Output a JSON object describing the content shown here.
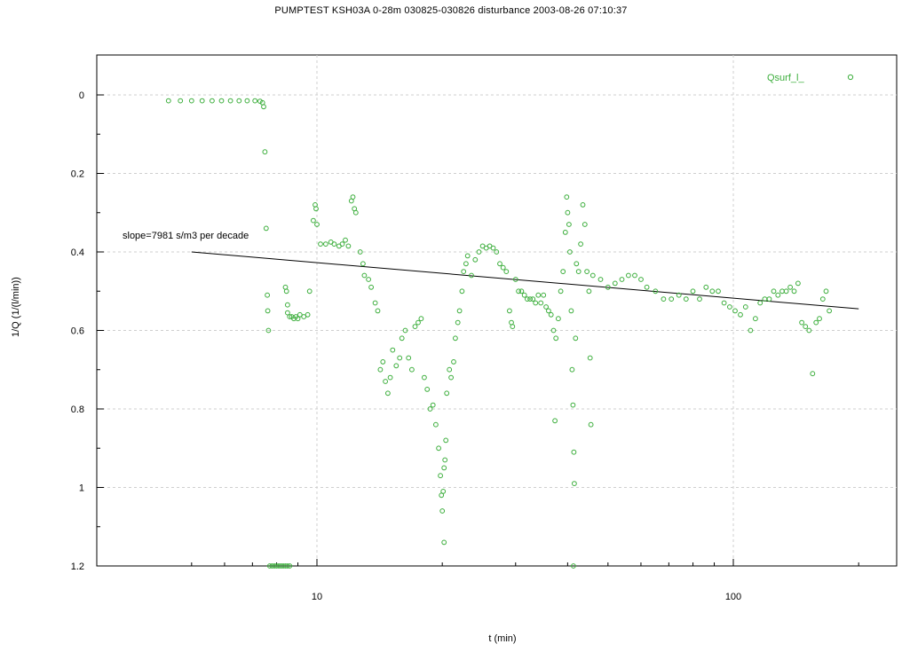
{
  "chart_data": {
    "type": "scatter",
    "title": "PUMPTEST KSH03A 0-28m 030825-030826  disturbance 2003-08-26 07:10:37",
    "xlabel": "t (min)",
    "ylabel": "1/Q (1/(l/min))",
    "x_scale": "log",
    "xlim": [
      4.4,
      240
    ],
    "ylim": [
      1.2,
      -0.1
    ],
    "y_inverted": true,
    "grid": true,
    "x_major_ticks": [
      {
        "value": 10,
        "label": "10"
      },
      {
        "value": 100,
        "label": "100"
      }
    ],
    "y_ticks": [
      {
        "value": 0,
        "label": "0"
      },
      {
        "value": 0.2,
        "label": "0.2"
      },
      {
        "value": 0.4,
        "label": "0.4"
      },
      {
        "value": 0.6,
        "label": "0.6"
      },
      {
        "value": 0.8,
        "label": "0.8"
      },
      {
        "value": 1,
        "label": "1"
      },
      {
        "value": 1.2,
        "label": "1.2"
      }
    ],
    "legend": {
      "position": "top-right",
      "label": "Qsurf_l_"
    },
    "series": [
      {
        "name": "Qsurf_l_",
        "color": "#3cae3c",
        "marker": "open-circle",
        "points": [
          [
            4.4,
            0.015
          ],
          [
            4.7,
            0.015
          ],
          [
            5,
            0.015
          ],
          [
            5.3,
            0.015
          ],
          [
            5.6,
            0.015
          ],
          [
            5.9,
            0.015
          ],
          [
            6.2,
            0.015
          ],
          [
            6.5,
            0.015
          ],
          [
            6.8,
            0.015
          ],
          [
            7.1,
            0.015
          ],
          [
            7.3,
            0.016
          ],
          [
            7.4,
            0.02
          ],
          [
            7.45,
            0.03
          ],
          [
            7.5,
            0.145
          ],
          [
            7.55,
            0.34
          ],
          [
            7.6,
            0.51
          ],
          [
            7.62,
            0.55
          ],
          [
            7.65,
            0.6
          ],
          [
            7.7,
            1.2
          ],
          [
            7.8,
            1.2
          ],
          [
            7.9,
            1.2
          ],
          [
            8.0,
            1.2
          ],
          [
            8.1,
            1.2
          ],
          [
            8.2,
            1.2
          ],
          [
            8.3,
            1.2
          ],
          [
            8.4,
            1.2
          ],
          [
            8.5,
            1.2
          ],
          [
            8.6,
            1.2
          ],
          [
            8.4,
            0.49
          ],
          [
            8.45,
            0.5
          ],
          [
            8.5,
            0.535
          ],
          [
            8.5,
            0.555
          ],
          [
            8.6,
            0.565
          ],
          [
            8.7,
            0.565
          ],
          [
            8.8,
            0.57
          ],
          [
            8.9,
            0.565
          ],
          [
            9.0,
            0.57
          ],
          [
            9.1,
            0.56
          ],
          [
            9.3,
            0.565
          ],
          [
            9.5,
            0.56
          ],
          [
            9.6,
            0.5
          ],
          [
            9.8,
            0.32
          ],
          [
            9.9,
            0.28
          ],
          [
            9.95,
            0.29
          ],
          [
            10,
            0.33
          ],
          [
            10.2,
            0.38
          ],
          [
            10.5,
            0.38
          ],
          [
            10.8,
            0.375
          ],
          [
            11,
            0.38
          ],
          [
            11.3,
            0.385
          ],
          [
            11.5,
            0.38
          ],
          [
            11.7,
            0.37
          ],
          [
            11.9,
            0.385
          ],
          [
            12.1,
            0.27
          ],
          [
            12.2,
            0.26
          ],
          [
            12.3,
            0.29
          ],
          [
            12.4,
            0.3
          ],
          [
            12.7,
            0.4
          ],
          [
            12.9,
            0.43
          ],
          [
            13.0,
            0.46
          ],
          [
            13.3,
            0.47
          ],
          [
            13.5,
            0.49
          ],
          [
            13.8,
            0.53
          ],
          [
            14.0,
            0.55
          ],
          [
            14.2,
            0.7
          ],
          [
            14.4,
            0.68
          ],
          [
            14.6,
            0.73
          ],
          [
            14.8,
            0.76
          ],
          [
            15.0,
            0.72
          ],
          [
            15.2,
            0.65
          ],
          [
            15.5,
            0.69
          ],
          [
            15.8,
            0.67
          ],
          [
            16.0,
            0.62
          ],
          [
            16.3,
            0.6
          ],
          [
            16.6,
            0.67
          ],
          [
            16.9,
            0.7
          ],
          [
            17.2,
            0.59
          ],
          [
            17.5,
            0.58
          ],
          [
            17.8,
            0.57
          ],
          [
            18.1,
            0.72
          ],
          [
            18.4,
            0.75
          ],
          [
            18.7,
            0.8
          ],
          [
            19.0,
            0.79
          ],
          [
            19.3,
            0.84
          ],
          [
            19.6,
            0.9
          ],
          [
            19.8,
            0.97
          ],
          [
            19.9,
            1.02
          ],
          [
            20.0,
            1.06
          ],
          [
            20.1,
            1.01
          ],
          [
            20.2,
            0.95
          ],
          [
            20.2,
            1.14
          ],
          [
            20.3,
            0.93
          ],
          [
            20.4,
            0.88
          ],
          [
            20.5,
            0.76
          ],
          [
            20.8,
            0.7
          ],
          [
            21.0,
            0.72
          ],
          [
            21.3,
            0.68
          ],
          [
            21.5,
            0.62
          ],
          [
            21.8,
            0.58
          ],
          [
            22.0,
            0.55
          ],
          [
            22.3,
            0.5
          ],
          [
            22.5,
            0.45
          ],
          [
            22.8,
            0.43
          ],
          [
            23.0,
            0.41
          ],
          [
            23.5,
            0.46
          ],
          [
            24.0,
            0.42
          ],
          [
            24.5,
            0.4
          ],
          [
            25.0,
            0.385
          ],
          [
            25.5,
            0.39
          ],
          [
            26.0,
            0.385
          ],
          [
            26.5,
            0.39
          ],
          [
            27.0,
            0.4
          ],
          [
            27.5,
            0.43
          ],
          [
            28.0,
            0.44
          ],
          [
            28.5,
            0.45
          ],
          [
            29.0,
            0.55
          ],
          [
            29.3,
            0.58
          ],
          [
            29.5,
            0.59
          ],
          [
            30.0,
            0.47
          ],
          [
            30.5,
            0.5
          ],
          [
            31.0,
            0.5
          ],
          [
            31.5,
            0.51
          ],
          [
            32.0,
            0.52
          ],
          [
            32.5,
            0.52
          ],
          [
            33.0,
            0.52
          ],
          [
            33.5,
            0.53
          ],
          [
            34.0,
            0.51
          ],
          [
            34.5,
            0.53
          ],
          [
            35.0,
            0.51
          ],
          [
            35.5,
            0.54
          ],
          [
            36.0,
            0.55
          ],
          [
            36.5,
            0.56
          ],
          [
            37.0,
            0.6
          ],
          [
            37.3,
            0.83
          ],
          [
            37.5,
            0.62
          ],
          [
            38.0,
            0.57
          ],
          [
            38.5,
            0.5
          ],
          [
            39.0,
            0.45
          ],
          [
            39.5,
            0.35
          ],
          [
            39.8,
            0.26
          ],
          [
            40.0,
            0.3
          ],
          [
            40.3,
            0.33
          ],
          [
            40.5,
            0.4
          ],
          [
            40.8,
            0.55
          ],
          [
            41.0,
            0.7
          ],
          [
            41.2,
            0.79
          ],
          [
            41.4,
            0.91
          ],
          [
            41.5,
            0.99
          ],
          [
            41.3,
            1.2
          ],
          [
            41.8,
            0.62
          ],
          [
            42.0,
            0.43
          ],
          [
            42.5,
            0.45
          ],
          [
            43.0,
            0.38
          ],
          [
            43.5,
            0.28
          ],
          [
            44.0,
            0.33
          ],
          [
            44.5,
            0.45
          ],
          [
            45.0,
            0.5
          ],
          [
            45.3,
            0.67
          ],
          [
            45.5,
            0.84
          ],
          [
            46.0,
            0.46
          ],
          [
            48.0,
            0.47
          ],
          [
            50.0,
            0.49
          ],
          [
            52.0,
            0.48
          ],
          [
            54.0,
            0.47
          ],
          [
            56.0,
            0.46
          ],
          [
            58.0,
            0.46
          ],
          [
            60.0,
            0.47
          ],
          [
            62.0,
            0.49
          ],
          [
            65.0,
            0.5
          ],
          [
            68.0,
            0.52
          ],
          [
            71.0,
            0.52
          ],
          [
            74.0,
            0.51
          ],
          [
            77.0,
            0.52
          ],
          [
            80.0,
            0.5
          ],
          [
            83.0,
            0.52
          ],
          [
            86.0,
            0.49
          ],
          [
            89.0,
            0.5
          ],
          [
            92.0,
            0.5
          ],
          [
            95.0,
            0.53
          ],
          [
            98.0,
            0.54
          ],
          [
            101.0,
            0.55
          ],
          [
            104.0,
            0.56
          ],
          [
            107.0,
            0.54
          ],
          [
            110.0,
            0.6
          ],
          [
            113.0,
            0.57
          ],
          [
            116.0,
            0.53
          ],
          [
            119.0,
            0.52
          ],
          [
            122.0,
            0.52
          ],
          [
            125.0,
            0.5
          ],
          [
            128.0,
            0.51
          ],
          [
            131.0,
            0.5
          ],
          [
            134.0,
            0.5
          ],
          [
            137.0,
            0.49
          ],
          [
            140.0,
            0.5
          ],
          [
            143.0,
            0.48
          ],
          [
            146.0,
            0.58
          ],
          [
            149.0,
            0.59
          ],
          [
            152.0,
            0.6
          ],
          [
            155.0,
            0.71
          ],
          [
            158.0,
            0.58
          ],
          [
            161.0,
            0.57
          ],
          [
            164.0,
            0.52
          ],
          [
            167.0,
            0.5
          ],
          [
            170.0,
            0.55
          ]
        ]
      }
    ],
    "fit_line": {
      "x": [
        5,
        200
      ],
      "y": [
        0.4,
        0.545
      ],
      "color": "#000000"
    },
    "annotation": "slope=7981 s/m3 per decade"
  }
}
